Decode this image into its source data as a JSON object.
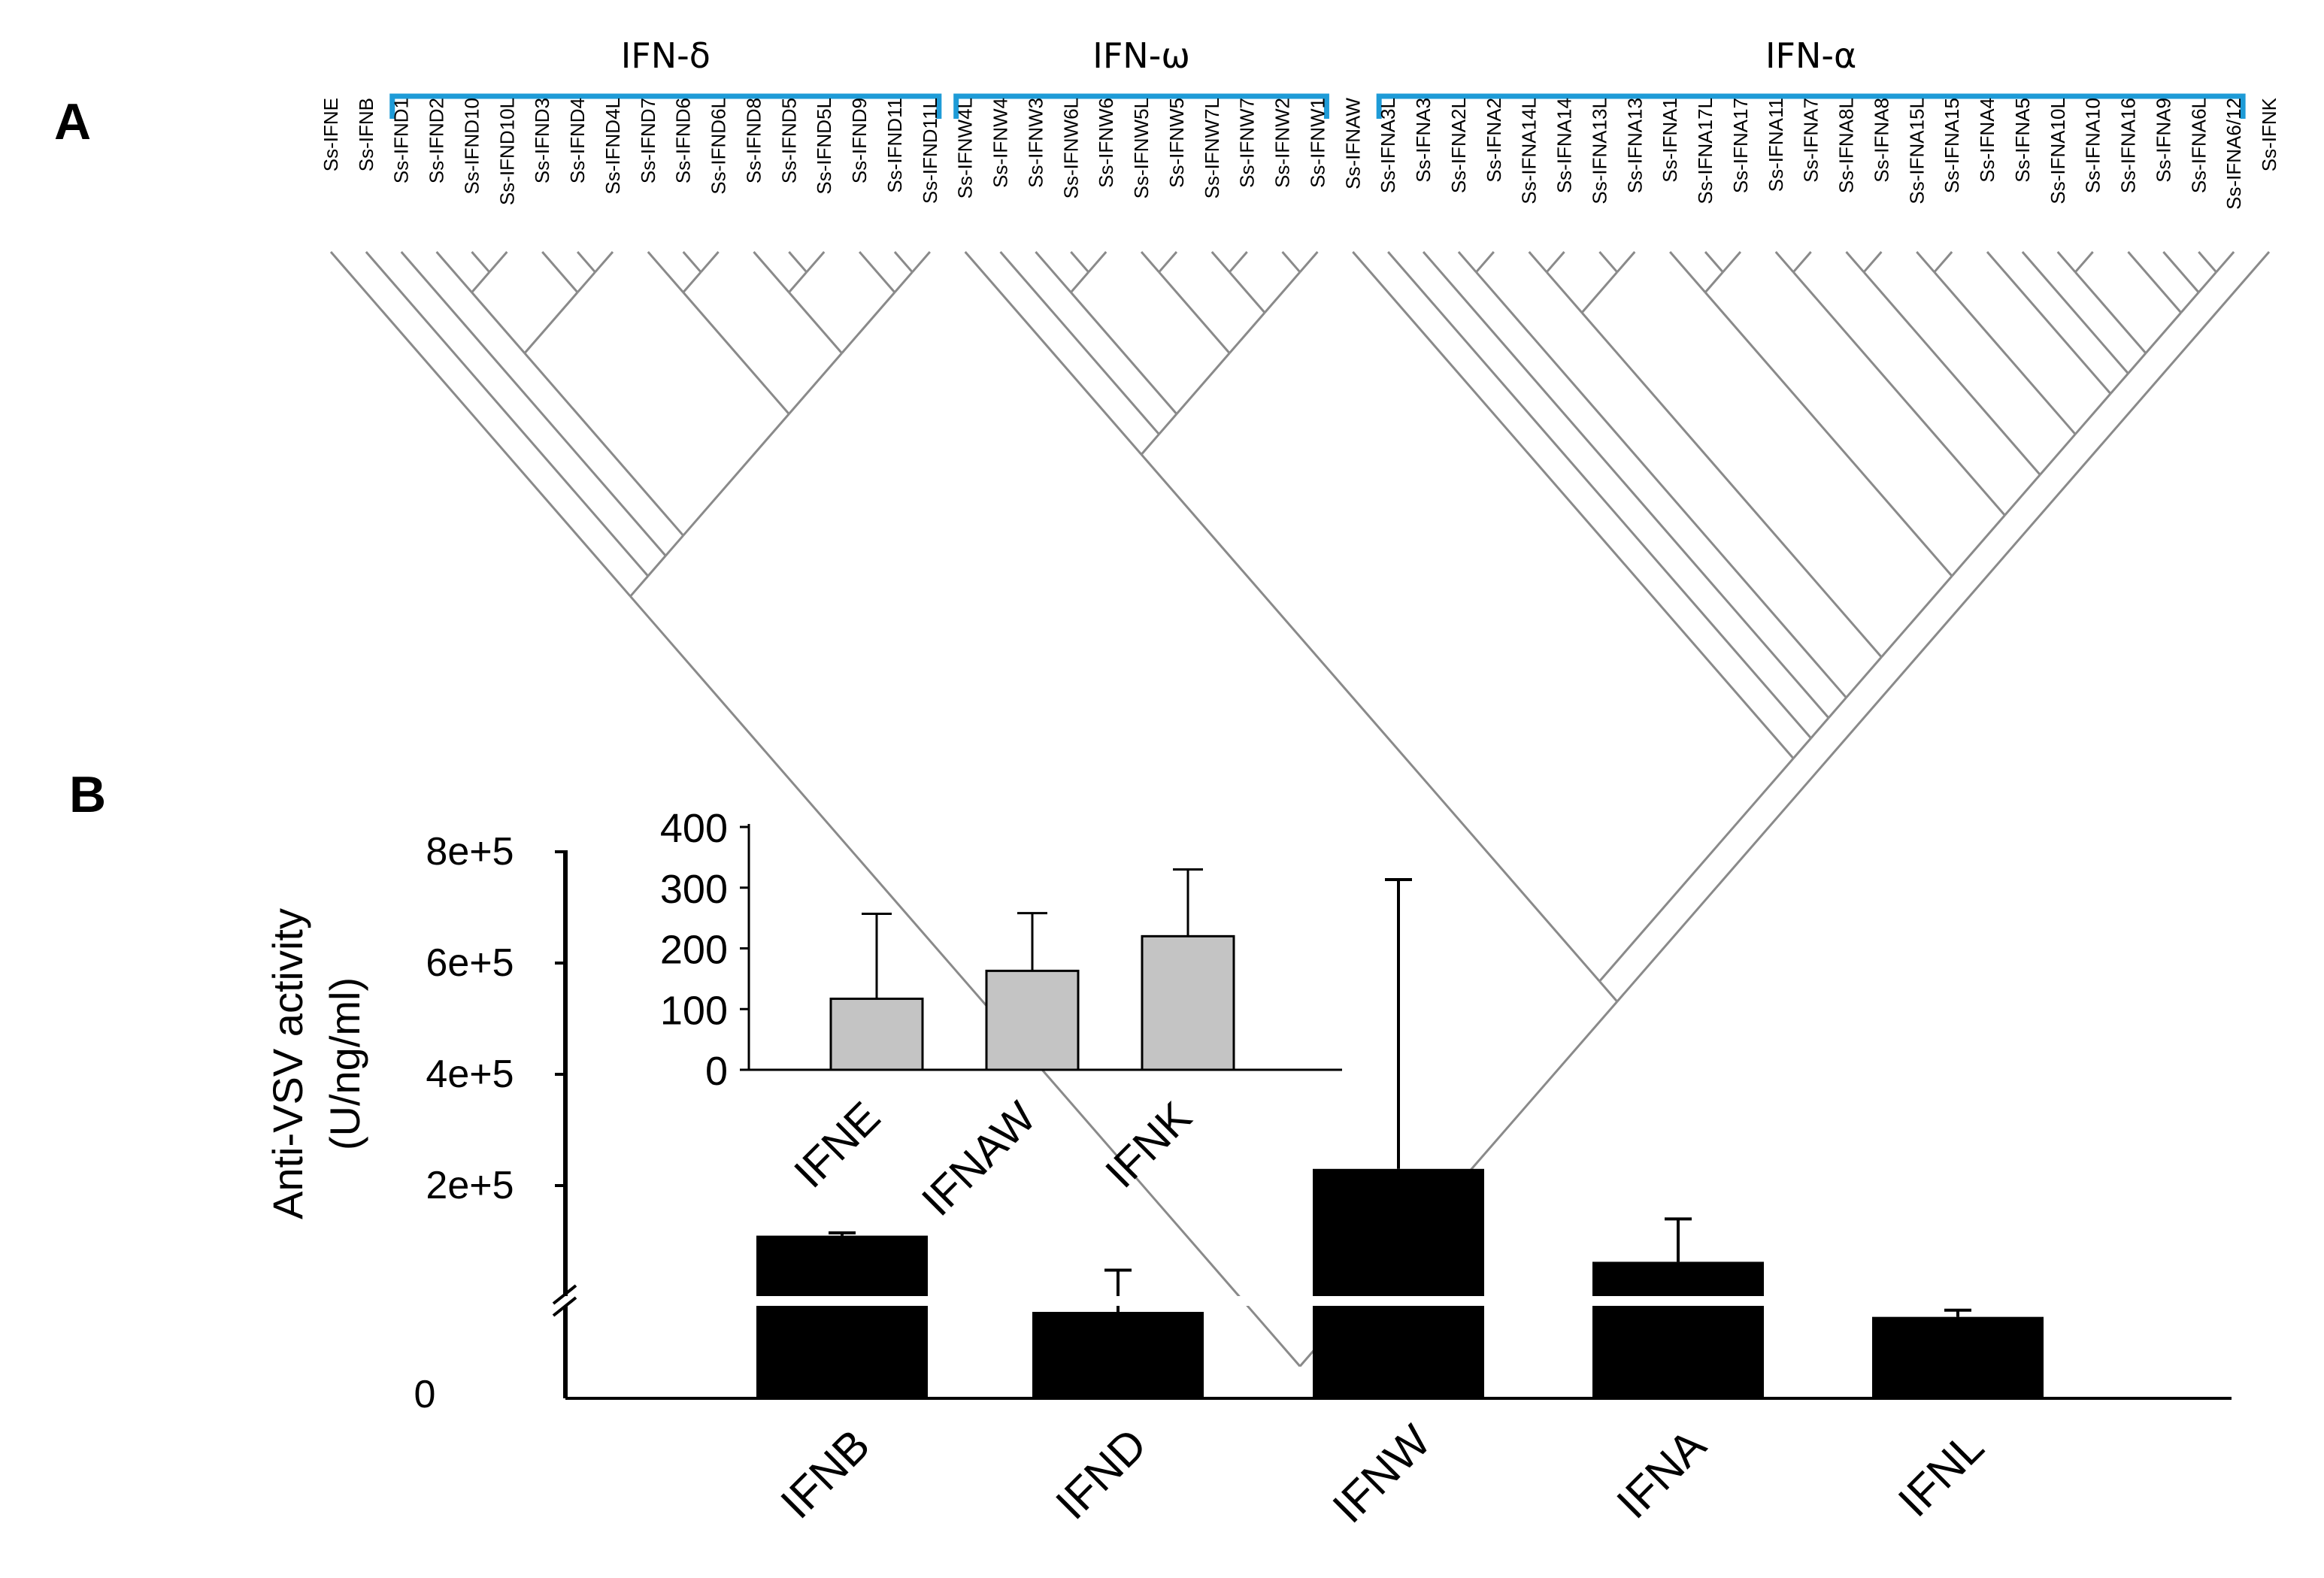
{
  "panel_a": {
    "label": "A",
    "groups": [
      {
        "label": "IFN-δ",
        "first": "Ss-IFND1",
        "last": "Ss-IFND11L"
      },
      {
        "label": "IFN-ω",
        "first": "Ss-IFNW4L",
        "last": "Ss-IFNW1"
      },
      {
        "label": "IFN-α",
        "first": "Ss-IFNA3L",
        "last": "Ss-IFNA6/12"
      }
    ],
    "bracket_color": "#1e9bd7",
    "leaves": [
      "Ss-IFNE",
      "Ss-IFNB",
      "Ss-IFND1",
      "Ss-IFND2",
      "Ss-IFND10",
      "Ss-IFND10L",
      "Ss-IFND3",
      "Ss-IFND4",
      "Ss-IFND4L",
      "Ss-IFND7",
      "Ss-IFND6",
      "Ss-IFND6L",
      "Ss-IFND8",
      "Ss-IFND5",
      "Ss-IFND5L",
      "Ss-IFND9",
      "Ss-IFND11",
      "Ss-IFND11L",
      "Ss-IFNW4L",
      "Ss-IFNW4",
      "Ss-IFNW3",
      "Ss-IFNW6L",
      "Ss-IFNW6",
      "Ss-IFNW5L",
      "Ss-IFNW5",
      "Ss-IFNW7L",
      "Ss-IFNW7",
      "Ss-IFNW2",
      "Ss-IFNW1",
      "Ss-IFNAW",
      "Ss-IFNA3L",
      "Ss-IFNA3",
      "Ss-IFNA2L",
      "Ss-IFNA2",
      "Ss-IFNA14L",
      "Ss-IFNA14",
      "Ss-IFNA13L",
      "Ss-IFNA13",
      "Ss-IFNA1",
      "Ss-IFNA17L",
      "Ss-IFNA17",
      "Ss-IFNA11",
      "Ss-IFNA7",
      "Ss-IFNA8L",
      "Ss-IFNA8",
      "Ss-IFNA15L",
      "Ss-IFNA15",
      "Ss-IFNA4",
      "Ss-IFNA5",
      "Ss-IFNA10L",
      "Ss-IFNA10",
      "Ss-IFNA16",
      "Ss-IFNA9",
      "Ss-IFNA6L",
      "Ss-IFNA6/12",
      "Ss-IFNK"
    ]
  },
  "panel_b": {
    "label": "B",
    "chart_data": [
      {
        "type": "bar",
        "role": "main",
        "categories": [
          "IFNB",
          "IFND",
          "IFNW",
          "IFNA",
          "IFNL"
        ],
        "values": [
          110000,
          30000,
          230000,
          60000,
          27000
        ],
        "error": [
          5000,
          25000,
          520000,
          80000,
          4000
        ],
        "ylabel": [
          "Anti-VSV activity",
          "(U/ng/ml)"
        ],
        "yticks": [
          {
            "value": 0,
            "label": "0"
          },
          {
            "value": 200000,
            "label": "2e+5"
          },
          {
            "value": 400000,
            "label": "4e+5"
          },
          {
            "value": 600000,
            "label": "6e+5"
          },
          {
            "value": 800000,
            "label": "8e+5"
          }
        ],
        "ylim": [
          0,
          800000
        ],
        "axis_break": true,
        "bar_color": "#000000"
      },
      {
        "type": "bar",
        "role": "inset",
        "categories": [
          "IFNE",
          "IFNAW",
          "IFNK"
        ],
        "values": [
          117,
          163,
          220
        ],
        "error": [
          140,
          95,
          110
        ],
        "yticks": [
          0,
          100,
          200,
          300,
          400
        ],
        "ylim": [
          0,
          400
        ],
        "bar_color": "#c4c4c4"
      }
    ]
  }
}
